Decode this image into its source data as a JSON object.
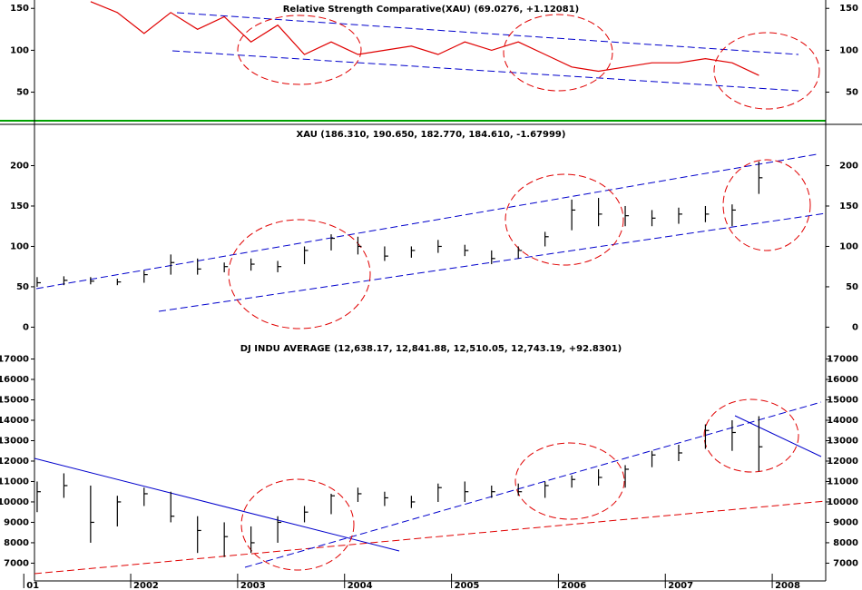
{
  "chart_data": [
    {
      "type": "line",
      "title": "Relative Strength Comparative(XAU) (69.0276, +1.12081)",
      "x": [
        2001.125,
        2001.375,
        2001.625,
        2001.875,
        2002.125,
        2002.375,
        2002.625,
        2002.875,
        2003.125,
        2003.375,
        2003.625,
        2003.875,
        2004.125,
        2004.375,
        2004.625,
        2004.875,
        2005.125,
        2005.375,
        2005.625,
        2005.875,
        2006.125,
        2006.375,
        2006.625,
        2006.875,
        2007.125,
        2007.375,
        2007.625,
        2007.875
      ],
      "series": [
        {
          "color": "#e00000",
          "values": [
            null,
            null,
            158,
            145,
            120,
            145,
            125,
            140,
            110,
            130,
            95,
            110,
            95,
            100,
            105,
            95,
            110,
            100,
            110,
            95,
            80,
            75,
            80,
            85,
            85,
            90,
            85,
            70
          ]
        }
      ],
      "xlim": [
        2001.1,
        2008.5
      ],
      "ylim": [
        17,
        160
      ],
      "yticks": [
        50,
        100,
        150
      ]
    },
    {
      "type": "ohlc",
      "title": "XAU (186.310, 190.650, 182.770, 184.610, -1.67999)",
      "x": [
        2001.125,
        2001.375,
        2001.625,
        2001.875,
        2002.125,
        2002.375,
        2002.625,
        2002.875,
        2003.125,
        2003.375,
        2003.625,
        2003.875,
        2004.125,
        2004.375,
        2004.625,
        2004.875,
        2005.125,
        2005.375,
        2005.625,
        2005.875,
        2006.125,
        2006.375,
        2006.625,
        2006.875,
        2007.125,
        2007.375,
        2007.625,
        2007.875
      ],
      "high": [
        62,
        63,
        62,
        60,
        70,
        90,
        85,
        80,
        85,
        82,
        100,
        115,
        112,
        100,
        100,
        108,
        102,
        95,
        100,
        118,
        158,
        160,
        150,
        145,
        148,
        150,
        152,
        205
      ],
      "low": [
        50,
        52,
        53,
        52,
        55,
        65,
        65,
        68,
        70,
        68,
        78,
        95,
        90,
        82,
        86,
        92,
        88,
        78,
        85,
        100,
        120,
        125,
        125,
        125,
        128,
        130,
        125,
        165
      ],
      "close": [
        55,
        58,
        57,
        56,
        65,
        80,
        72,
        75,
        78,
        75,
        95,
        110,
        100,
        88,
        95,
        100,
        95,
        85,
        95,
        112,
        145,
        140,
        138,
        135,
        140,
        140,
        145,
        185
      ],
      "color": "#000000",
      "xlim": [
        2001.1,
        2008.5
      ],
      "ylim": [
        -13,
        250
      ],
      "yticks": [
        0,
        50,
        100,
        150,
        200
      ]
    },
    {
      "type": "ohlc",
      "title": "DJ INDU AVERAGE (12,638.17, 12,841.88, 12,510.05, 12,743.19, +92.8301)",
      "x": [
        2001.125,
        2001.375,
        2001.625,
        2001.875,
        2002.125,
        2002.375,
        2002.625,
        2002.875,
        2003.125,
        2003.375,
        2003.625,
        2003.875,
        2004.125,
        2004.375,
        2004.625,
        2004.875,
        2005.125,
        2005.375,
        2005.625,
        2005.875,
        2006.125,
        2006.375,
        2006.625,
        2006.875,
        2007.125,
        2007.375,
        2007.625,
        2007.875
      ],
      "high": [
        11000,
        11400,
        10800,
        10300,
        10700,
        10500,
        9300,
        9000,
        8800,
        9300,
        9800,
        10400,
        10700,
        10500,
        10300,
        10900,
        11000,
        10800,
        10900,
        11000,
        11300,
        11600,
        11800,
        12500,
        12800,
        13800,
        14000,
        14200
      ],
      "low": [
        9500,
        10200,
        8000,
        8800,
        9800,
        9000,
        7500,
        7300,
        7500,
        8000,
        9000,
        9400,
        10000,
        9800,
        9700,
        10000,
        10000,
        10200,
        10300,
        10200,
        10700,
        10800,
        10700,
        11700,
        12000,
        12600,
        12500,
        11500
      ],
      "close": [
        10500,
        10800,
        9000,
        10000,
        10400,
        9300,
        8600,
        8300,
        8000,
        9000,
        9500,
        10300,
        10400,
        10200,
        10000,
        10700,
        10500,
        10500,
        10500,
        10800,
        11100,
        11200,
        11600,
        12300,
        12400,
        13500,
        13400,
        12700
      ],
      "color": "#000000",
      "xlim": [
        2001.1,
        2008.5
      ],
      "ylim": [
        6130,
        17690
      ],
      "yticks": [
        7000,
        8000,
        9000,
        10000,
        11000,
        12000,
        13000,
        14000,
        15000,
        16000,
        17000
      ],
      "xticks": [
        {
          "value": 2001,
          "label": "01"
        },
        2002,
        2003,
        2004,
        2005,
        2006,
        2007,
        2008
      ]
    }
  ]
}
